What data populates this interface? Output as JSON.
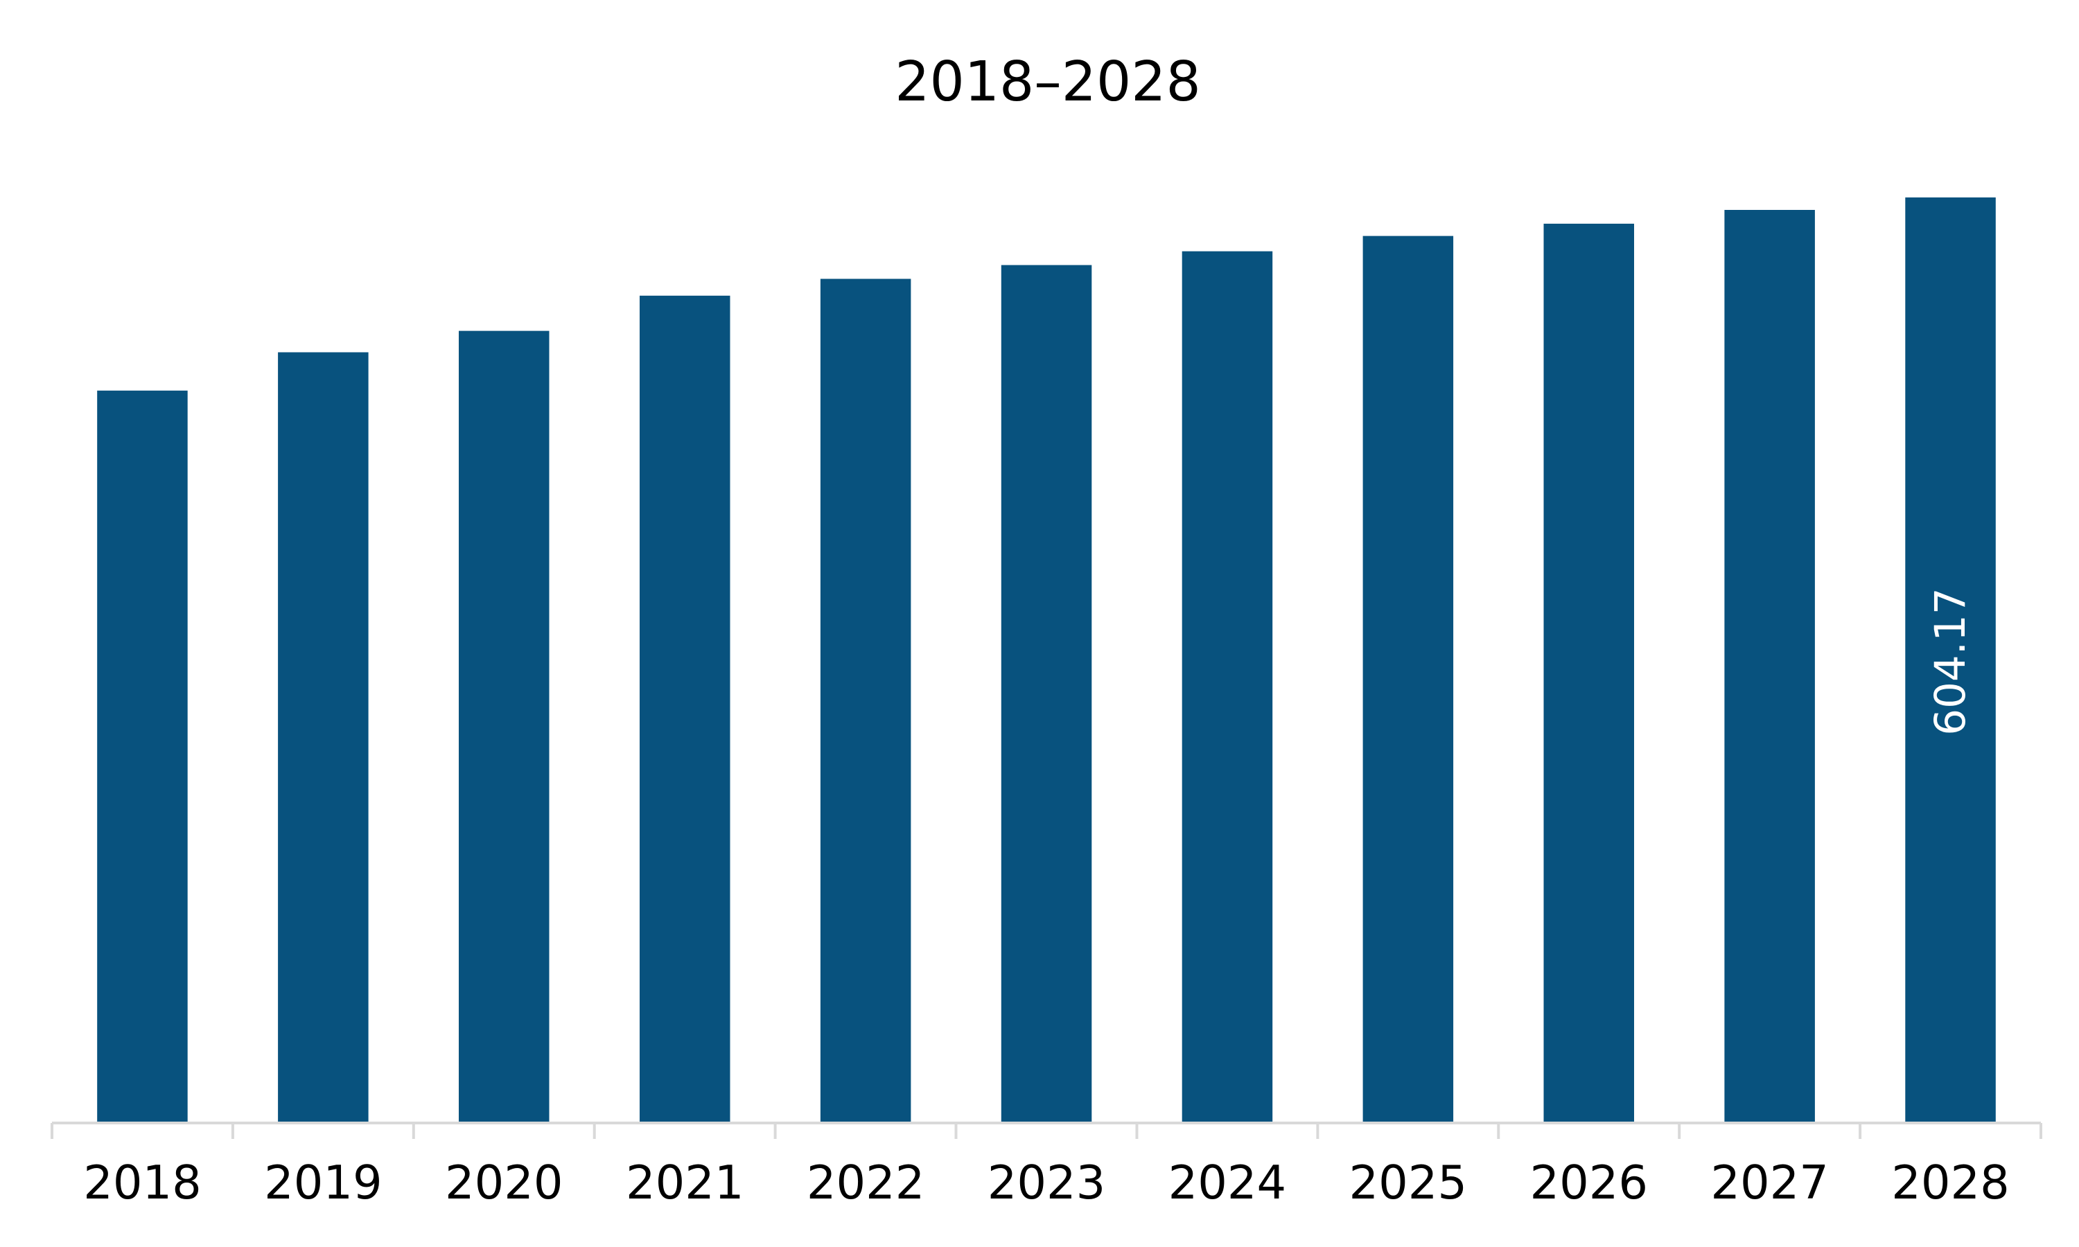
{
  "chart_data": {
    "type": "bar",
    "title": "2018–2028",
    "categories": [
      "2018",
      "2019",
      "2020",
      "2021",
      "2022",
      "2023",
      "2024",
      "2025",
      "2026",
      "2027",
      "2028"
    ],
    "values": [
      478,
      503,
      517,
      540,
      551,
      560,
      569,
      579,
      587,
      596,
      604.17
    ],
    "data_labels": [
      {
        "category": "2028",
        "text": "604.17"
      }
    ],
    "bar_color": "#08527E",
    "axis_color": "#D9D9D9",
    "ylim": [
      0,
      620
    ],
    "grid": false,
    "legend": "none"
  }
}
